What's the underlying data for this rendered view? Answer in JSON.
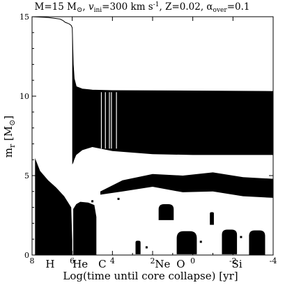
{
  "chart_data": {
    "type": "kippenhahn",
    "title": "M=15 M⊙, vᵢₙᵢ=300 km s⁻¹, Z=0.02, αₒᵥₑᵣ=0.1",
    "title_parts": {
      "mass": "M=15 M",
      "sun": "⊙",
      "vel_sym": "v",
      "vel_sub": "ini",
      "vel_val": "=300 km s",
      "vel_exp": "-1",
      "z": ", Z=0.02, ",
      "alpha_sym": "α",
      "alpha_sub": "over",
      "alpha_val": "=0.1"
    },
    "xlabel": "Log(time until core collapse) [yr]",
    "ylabel_main": "m",
    "ylabel_sub": "r",
    "ylabel_unit": "[M",
    "ylabel_sun": "⊙",
    "ylabel_close": "]",
    "xlim": [
      8,
      -4
    ],
    "ylim": [
      0,
      15
    ],
    "x_tick_labels": [
      "8",
      "6",
      "4",
      "2",
      "0",
      "-2",
      "-4"
    ],
    "y_tick_labels": [
      "0",
      "5",
      "10",
      "15"
    ],
    "burning_stage_labels": [
      "H",
      "He",
      "C",
      "Ne",
      "O",
      "Si"
    ],
    "total_mass": [
      [
        8.0,
        15.0
      ],
      [
        7.2,
        14.95
      ],
      [
        6.6,
        14.85
      ],
      [
        6.45,
        14.75
      ],
      [
        6.35,
        14.65
      ],
      [
        6.25,
        14.6
      ],
      [
        6.15,
        14.55
      ],
      [
        6.05,
        14.45
      ],
      [
        6.0,
        14.3
      ],
      [
        5.95,
        12.0
      ],
      [
        5.9,
        11.1
      ],
      [
        5.8,
        10.6
      ],
      [
        5.5,
        10.45
      ],
      [
        5.0,
        10.38
      ],
      [
        4.0,
        10.35
      ],
      [
        0,
        10.33
      ],
      [
        -4,
        10.3
      ]
    ],
    "convective_envelope": {
      "x": [
        6.0,
        5.95,
        5.9,
        5.8,
        5.5,
        5.0,
        4.0,
        2.0,
        0.0,
        -2.0,
        -4.0
      ],
      "top": [
        14.3,
        12.0,
        11.1,
        10.6,
        10.45,
        10.38,
        10.35,
        10.34,
        10.33,
        10.32,
        10.3
      ],
      "bottom": [
        5.7,
        5.8,
        6.0,
        6.3,
        6.6,
        6.8,
        6.55,
        6.35,
        6.3,
        6.3,
        6.3
      ]
    },
    "convective_core_h": [
      [
        7.85,
        6.1
      ],
      [
        7.6,
        5.3
      ],
      [
        7.2,
        4.7
      ],
      [
        6.8,
        4.25
      ],
      [
        6.4,
        3.7
      ],
      [
        6.2,
        3.3
      ],
      [
        6.05,
        3.0
      ],
      [
        6.0,
        0.9
      ],
      [
        6.0,
        0
      ]
    ],
    "convective_core_he": [
      [
        5.95,
        2.9
      ],
      [
        5.8,
        3.2
      ],
      [
        5.6,
        3.35
      ],
      [
        5.2,
        3.3
      ],
      [
        4.9,
        3.15
      ],
      [
        4.8,
        2.4
      ],
      [
        4.8,
        0
      ]
    ],
    "carbon_shells": [
      {
        "x": [
          2.85,
          2.6
        ],
        "y_bottom": 0.05,
        "y_top": 0.9
      },
      {
        "x": [
          1.7,
          0.95
        ],
        "y_bottom": 2.2,
        "y_top": 3.2
      },
      {
        "x": [
          0.8,
          -0.2
        ],
        "y_bottom": 0.05,
        "y_top": 1.5
      }
    ],
    "oxygen_shells": [
      {
        "x": [
          -1.45,
          -2.2
        ],
        "y_bottom": 0.05,
        "y_top": 1.6
      },
      {
        "x": [
          -0.85,
          -1.05
        ],
        "y_bottom": 1.9,
        "y_top": 2.7
      },
      {
        "x": [
          -2.8,
          -3.6
        ],
        "y_bottom": 0.0,
        "y_top": 1.55
      }
    ],
    "outer_shell_band": {
      "x": [
        4.6,
        3.5,
        2.0,
        0.5,
        -1.0,
        -2.5,
        -4.0
      ],
      "top": [
        4.0,
        4.7,
        5.1,
        5.0,
        5.2,
        4.9,
        4.8
      ],
      "bottom": [
        3.8,
        4.0,
        4.3,
        3.95,
        4.0,
        3.7,
        3.6
      ]
    },
    "grid": false,
    "legend": "none"
  }
}
